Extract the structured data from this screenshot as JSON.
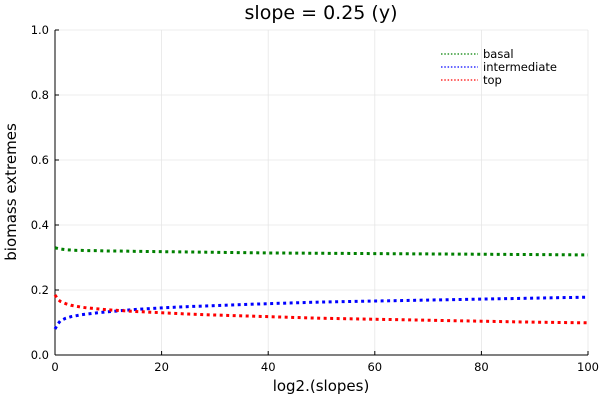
{
  "chart_data": {
    "type": "line",
    "title": "slope = 0.25 (y)",
    "xlabel": "log2.(slopes)",
    "ylabel": "biomass extremes",
    "xlim": [
      0,
      100
    ],
    "ylim": [
      0,
      1.0
    ],
    "xticks": [
      0,
      20,
      40,
      60,
      80,
      100
    ],
    "yticks": [
      0.0,
      0.2,
      0.4,
      0.6,
      0.8,
      1.0
    ],
    "xtick_labels": [
      "0",
      "20",
      "40",
      "60",
      "80",
      "100"
    ],
    "ytick_labels": [
      "0.0",
      "0.2",
      "0.4",
      "0.6",
      "0.8",
      "1.0"
    ],
    "grid": true,
    "legend_position": "top-right",
    "line_style": "dotted",
    "x": [
      0,
      0.5,
      1,
      2,
      3,
      4,
      5,
      6,
      8,
      10,
      12,
      15,
      20,
      25,
      30,
      40,
      50,
      60,
      70,
      80,
      90,
      100
    ],
    "series": [
      {
        "name": "basal",
        "color": "#008000",
        "values": [
          0.33,
          0.328,
          0.326,
          0.324,
          0.323,
          0.322,
          0.322,
          0.321,
          0.321,
          0.32,
          0.32,
          0.319,
          0.318,
          0.317,
          0.316,
          0.314,
          0.313,
          0.312,
          0.311,
          0.31,
          0.309,
          0.308
        ]
      },
      {
        "name": "intermediate",
        "color": "#0000ff",
        "values": [
          0.08,
          0.095,
          0.105,
          0.113,
          0.118,
          0.121,
          0.124,
          0.126,
          0.13,
          0.133,
          0.136,
          0.14,
          0.145,
          0.149,
          0.152,
          0.158,
          0.163,
          0.166,
          0.169,
          0.172,
          0.175,
          0.178
        ]
      },
      {
        "name": "top",
        "color": "#ff0000",
        "values": [
          0.185,
          0.172,
          0.165,
          0.158,
          0.153,
          0.15,
          0.147,
          0.145,
          0.142,
          0.139,
          0.137,
          0.134,
          0.13,
          0.126,
          0.123,
          0.118,
          0.113,
          0.11,
          0.107,
          0.104,
          0.101,
          0.099
        ]
      }
    ]
  }
}
